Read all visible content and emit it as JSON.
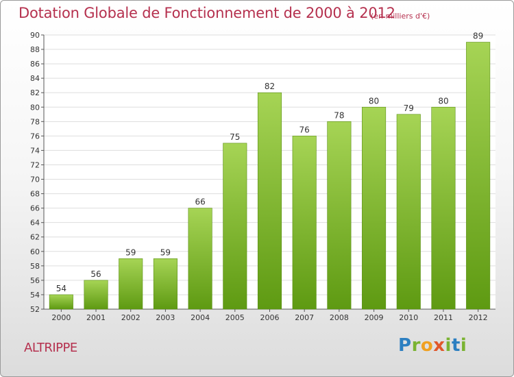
{
  "header": {
    "title": "Dotation Globale de Fonctionnement de 2000 à 2012",
    "unit": "(en milliers d'€)"
  },
  "footer": {
    "commune": "ALTRIPPE",
    "logo": "Proxiti"
  },
  "chart_data": {
    "type": "bar",
    "title": "Dotation Globale de Fonctionnement de 2000 à 2012",
    "subtitle": "(en milliers d'€)",
    "xlabel": "",
    "ylabel": "",
    "categories": [
      "2000",
      "2001",
      "2002",
      "2003",
      "2004",
      "2005",
      "2006",
      "2007",
      "2008",
      "2009",
      "2010",
      "2011",
      "2012"
    ],
    "values": [
      54,
      56,
      59,
      59,
      66,
      75,
      82,
      76,
      78,
      80,
      79,
      80,
      89
    ],
    "ylim": [
      52,
      90
    ],
    "yticks": [
      52,
      54,
      56,
      58,
      60,
      62,
      64,
      66,
      68,
      70,
      72,
      74,
      76,
      78,
      80,
      82,
      84,
      86,
      88,
      90
    ],
    "grid": true,
    "legend": "none",
    "colors": {
      "bar_light": "#a6d455",
      "bar_dark": "#5e9a12",
      "grid": "#dddddd",
      "title": "#b5304e"
    }
  }
}
